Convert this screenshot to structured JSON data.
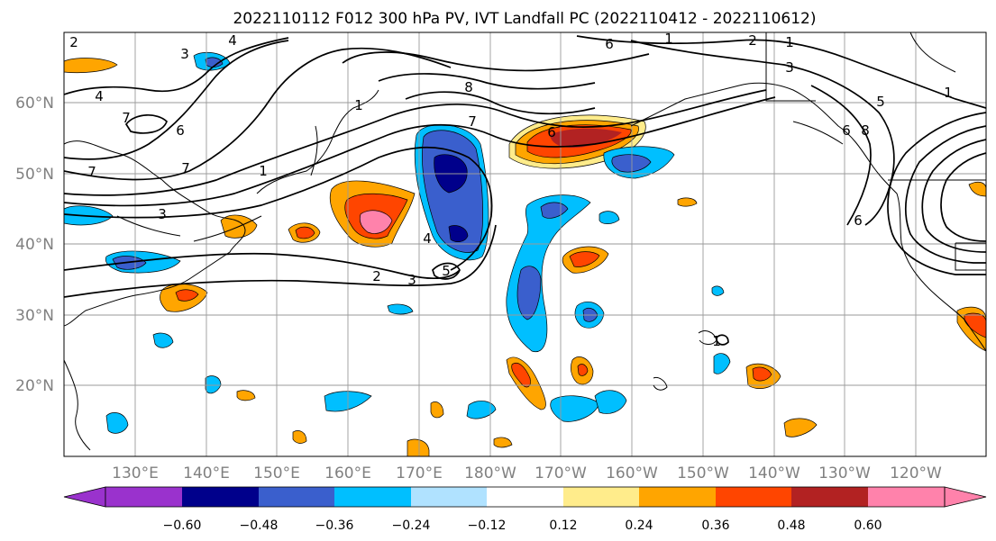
{
  "title": "2022110112 F012 300 hPa PV, IVT Landfall PC (2022110412 - 2022110612)",
  "map": {
    "lat_ticks": [
      "60°N",
      "50°N",
      "40°N",
      "30°N",
      "20°N"
    ],
    "lon_ticks": [
      "130°E",
      "140°E",
      "150°E",
      "160°E",
      "170°E",
      "180°W",
      "170°W",
      "160°W",
      "150°W",
      "140°W",
      "130°W",
      "120°W"
    ],
    "contour_labels": [
      "4",
      "3",
      "4",
      "7",
      "6",
      "7",
      "1",
      "3",
      "7",
      "1",
      "2",
      "3",
      "5",
      "4",
      "7",
      "6",
      "8",
      "6",
      "2",
      "1",
      "3",
      "1",
      "6",
      "5",
      "8",
      "6",
      "1",
      "2",
      "1"
    ],
    "colors": {
      "land_lines": "#000000",
      "grid": "#9a9a9a",
      "tick_label": "#808080"
    }
  },
  "colorbar": {
    "tick_labels": [
      "−0.60",
      "−0.48",
      "−0.36",
      "−0.24",
      "−0.12",
      "0.12",
      "0.24",
      "0.36",
      "0.48",
      "0.60"
    ],
    "colors": [
      "#9a32cd",
      "#00008b",
      "#3a5fcd",
      "#00bfff",
      "#b0e2ff",
      "#ffffff",
      "#ffec8b",
      "#ffa500",
      "#ff4500",
      "#b22222",
      "#ff82ab"
    ]
  }
}
